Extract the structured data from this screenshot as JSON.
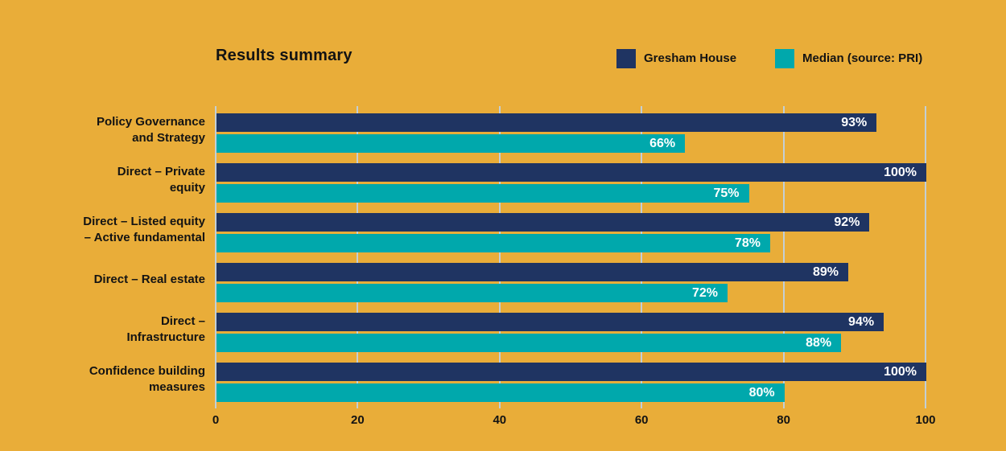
{
  "chart": {
    "title": "Results summary",
    "background_color": "#E9AD39",
    "grid_color": "#C3CFD6",
    "text_color": "#131313",
    "value_label_color": "#FFFFFF"
  },
  "legend": [
    {
      "label": "Gresham House",
      "color": "#1F3462"
    },
    {
      "label": "Median (source: PRI)",
      "color": "#00A8AC"
    }
  ],
  "chart_data": {
    "type": "bar",
    "orientation": "horizontal",
    "title": "Results summary",
    "categories": [
      "Policy Governance and Strategy",
      "Direct – Private equity",
      "Direct – Listed equity – Active fundamental",
      "Direct – Real estate",
      "Direct – Infrastructure",
      "Confidence building measures"
    ],
    "category_lines": [
      [
        "Policy Governance",
        "and Strategy"
      ],
      [
        "Direct – Private",
        "equity"
      ],
      [
        "Direct – Listed equity",
        "– Active fundamental"
      ],
      [
        "Direct – Real estate"
      ],
      [
        "Direct –",
        "Infrastructure"
      ],
      [
        "Confidence building",
        "measures"
      ]
    ],
    "series": [
      {
        "name": "Gresham House",
        "color": "#1F3462",
        "values": [
          93,
          100,
          92,
          89,
          94,
          100
        ],
        "labels": [
          "93%",
          "100%",
          "92%",
          "89%",
          "94%",
          "100%"
        ]
      },
      {
        "name": "Median (source: PRI)",
        "color": "#00A8AC",
        "values": [
          66,
          75,
          78,
          72,
          88,
          80
        ],
        "labels": [
          "66%",
          "75%",
          "78%",
          "72%",
          "88%",
          "80%"
        ]
      }
    ],
    "xlim": [
      0,
      100
    ],
    "xticks": [
      "0",
      "20",
      "40",
      "60",
      "80",
      "100"
    ],
    "grid": true,
    "legend_position": "top-right"
  }
}
